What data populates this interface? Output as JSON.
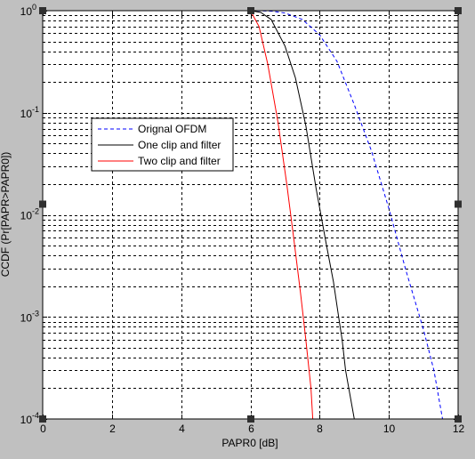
{
  "chart_data": {
    "type": "line",
    "title": "",
    "xlabel": "PAPR0 [dB]",
    "ylabel": "CCDF (Pr[PAPR>PAPR0])",
    "xlim": [
      0,
      12
    ],
    "ylim": [
      0.0001,
      1
    ],
    "yscale": "log",
    "grid": true,
    "legend_position": "upper-left",
    "x_ticks": [
      0,
      2,
      4,
      6,
      8,
      10,
      12
    ],
    "y_ticks": [
      {
        "base": "10",
        "exp": "-4",
        "value": 0.0001
      },
      {
        "base": "10",
        "exp": "-3",
        "value": 0.001
      },
      {
        "base": "10",
        "exp": "-2",
        "value": 0.01
      },
      {
        "base": "10",
        "exp": "-1",
        "value": 0.1
      },
      {
        "base": "10",
        "exp": "0",
        "value": 1
      }
    ],
    "series": [
      {
        "name": "Orignal OFDM",
        "color": "#0000ff",
        "dash": "dashed",
        "points": [
          [
            6.0,
            1
          ],
          [
            6.6,
            0.99
          ],
          [
            7.0,
            0.95
          ],
          [
            7.5,
            0.82
          ],
          [
            8.0,
            0.58
          ],
          [
            8.5,
            0.32
          ],
          [
            9.0,
            0.12
          ],
          [
            9.5,
            0.042
          ],
          [
            10.0,
            0.0115
          ],
          [
            10.5,
            0.0028
          ],
          [
            11.0,
            0.00075
          ],
          [
            11.3,
            0.0003
          ],
          [
            11.55,
            0.0001
          ]
        ]
      },
      {
        "name": "One clip and filter",
        "color": "#000000",
        "dash": "solid",
        "points": [
          [
            6.0,
            1
          ],
          [
            6.3,
            0.96
          ],
          [
            6.6,
            0.82
          ],
          [
            7.0,
            0.45
          ],
          [
            7.3,
            0.22
          ],
          [
            7.6,
            0.075
          ],
          [
            7.9,
            0.018
          ],
          [
            8.2,
            0.005
          ],
          [
            8.4,
            0.0022
          ],
          [
            8.55,
            0.001
          ],
          [
            8.65,
            0.0006
          ],
          [
            8.75,
            0.0003
          ],
          [
            9.0,
            0.0001
          ]
        ]
      },
      {
        "name": "Two clip and filter",
        "color": "#ff0000",
        "dash": "solid",
        "points": [
          [
            5.5,
            1
          ],
          [
            6.0,
            1
          ],
          [
            6.25,
            0.7
          ],
          [
            6.5,
            0.3
          ],
          [
            6.8,
            0.08
          ],
          [
            7.05,
            0.02
          ],
          [
            7.25,
            0.006
          ],
          [
            7.45,
            0.0017
          ],
          [
            7.6,
            0.0006
          ],
          [
            7.75,
            0.0002
          ],
          [
            7.8,
            0.0001
          ]
        ]
      }
    ]
  }
}
